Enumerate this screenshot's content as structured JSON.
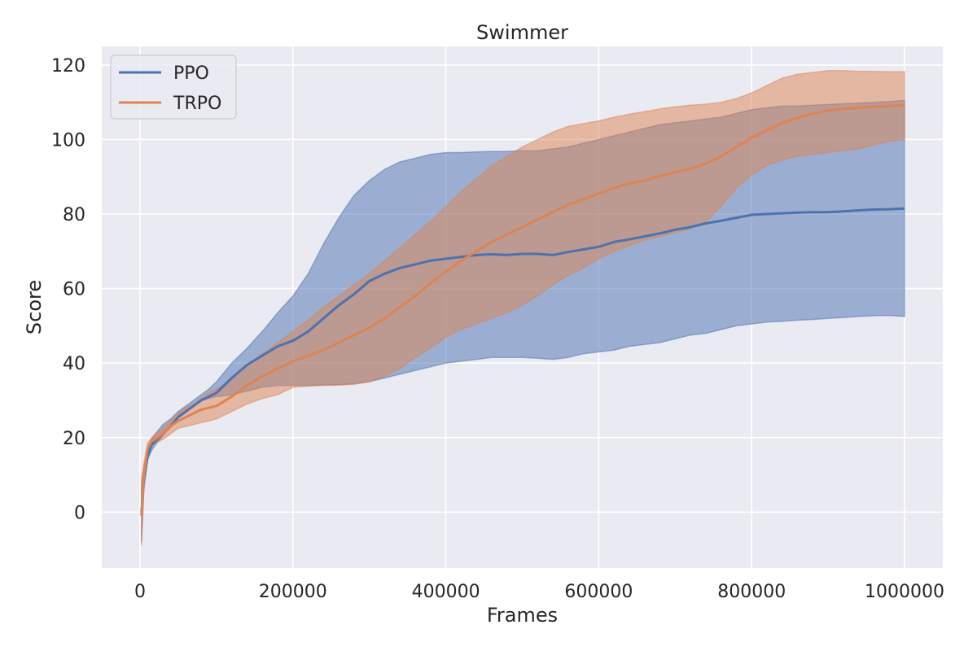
{
  "chart_data": {
    "type": "line",
    "title": "Swimmer",
    "xlabel": "Frames",
    "ylabel": "Score",
    "xlim": [
      -50000,
      1050000
    ],
    "ylim": [
      -15,
      125
    ],
    "xticks": [
      0,
      200000,
      400000,
      600000,
      800000,
      1000000
    ],
    "xtick_labels": [
      "0",
      "200000",
      "400000",
      "600000",
      "800000",
      "1000000"
    ],
    "yticks": [
      0,
      20,
      40,
      60,
      80,
      100,
      120
    ],
    "ytick_labels": [
      "0",
      "20",
      "40",
      "60",
      "80",
      "100",
      "120"
    ],
    "grid": true,
    "legend": "top-left",
    "background": "#eaeaf2",
    "series": [
      {
        "name": "PPO",
        "color": "#4c72b0",
        "x": [
          2000,
          5000,
          10000,
          15000,
          20000,
          30000,
          40000,
          50000,
          60000,
          70000,
          80000,
          90000,
          100000,
          120000,
          140000,
          160000,
          180000,
          200000,
          220000,
          240000,
          260000,
          280000,
          300000,
          320000,
          340000,
          360000,
          380000,
          400000,
          420000,
          440000,
          460000,
          480000,
          500000,
          520000,
          540000,
          560000,
          580000,
          600000,
          620000,
          640000,
          660000,
          680000,
          700000,
          720000,
          740000,
          760000,
          780000,
          800000,
          820000,
          840000,
          860000,
          880000,
          900000,
          920000,
          940000,
          960000,
          980000,
          1000000
        ],
        "mean": [
          0,
          9,
          15,
          18,
          19,
          21,
          23,
          25.5,
          27,
          28.5,
          30,
          31,
          32,
          36,
          39.5,
          42,
          44.5,
          46,
          48.5,
          52,
          55.5,
          58.5,
          62,
          64,
          65.5,
          66.5,
          67.5,
          68,
          68.5,
          69,
          69.2,
          69,
          69.3,
          69.3,
          69,
          69.8,
          70.5,
          71.2,
          72.5,
          73.2,
          74,
          74.8,
          75.8,
          76.5,
          77.5,
          78.2,
          79,
          79.8,
          80,
          80.2,
          80.4,
          80.5,
          80.5,
          80.7,
          81,
          81.2,
          81.3,
          81.5
        ],
        "lower": [
          -8,
          6,
          14,
          16.5,
          18,
          20.5,
          23,
          25.5,
          27,
          28.5,
          30,
          30.5,
          31,
          31.5,
          32.5,
          33.5,
          34,
          34,
          34,
          34.1,
          34.2,
          34.5,
          35,
          36,
          37,
          38,
          39,
          40,
          40.5,
          41,
          41.5,
          41.5,
          41.5,
          41.3,
          41,
          41.5,
          42.5,
          43,
          43.5,
          44.5,
          45,
          45.5,
          46.5,
          47.5,
          48,
          49,
          50,
          50.5,
          51,
          51.2,
          51.5,
          51.7,
          52,
          52.2,
          52.5,
          52.7,
          52.8,
          52.5
        ],
        "upper": [
          7,
          12,
          16.5,
          19.5,
          21,
          23.5,
          25,
          27,
          28.5,
          30,
          31.5,
          33,
          35,
          40,
          44,
          48.5,
          53.5,
          58,
          64,
          72,
          79,
          85,
          89,
          92,
          94,
          95,
          96,
          96.5,
          96.5,
          96.7,
          96.8,
          96.8,
          97,
          97,
          97.5,
          98,
          99,
          100,
          101,
          102,
          103,
          104,
          104.5,
          105,
          105.5,
          106,
          107,
          108,
          108.5,
          109,
          109,
          109.2,
          109.4,
          109.6,
          109.8,
          110,
          110.2,
          110.5
        ]
      },
      {
        "name": "TRPO",
        "color": "#dd8452",
        "x": [
          2000,
          5000,
          10000,
          15000,
          20000,
          30000,
          40000,
          50000,
          60000,
          70000,
          80000,
          90000,
          100000,
          120000,
          140000,
          160000,
          180000,
          200000,
          220000,
          240000,
          260000,
          280000,
          300000,
          320000,
          340000,
          360000,
          380000,
          400000,
          420000,
          440000,
          460000,
          480000,
          500000,
          520000,
          540000,
          560000,
          580000,
          600000,
          620000,
          640000,
          660000,
          680000,
          700000,
          720000,
          740000,
          760000,
          780000,
          800000,
          820000,
          840000,
          860000,
          880000,
          900000,
          920000,
          940000,
          960000,
          980000,
          1000000
        ],
        "mean": [
          -1,
          10,
          17,
          19,
          19.5,
          21,
          23,
          24.5,
          25.5,
          26.5,
          27.5,
          28,
          28.5,
          31,
          34,
          36.5,
          38.5,
          40.5,
          42,
          43.5,
          45.5,
          47.5,
          49.5,
          52,
          55,
          58,
          61.5,
          64.5,
          67.5,
          70,
          72.5,
          74.5,
          76.5,
          78.5,
          80.5,
          82.5,
          84,
          85.5,
          87,
          88.2,
          89,
          90.2,
          91.2,
          92.2,
          93.5,
          95.5,
          98,
          100.5,
          102.5,
          104.5,
          105.8,
          107,
          107.8,
          108.2,
          108.6,
          108.8,
          109,
          109.2
        ],
        "lower": [
          -9,
          8,
          16,
          17.5,
          18.5,
          19.5,
          21,
          22.5,
          23,
          23.5,
          24,
          24.5,
          25,
          27,
          29,
          30.5,
          31.5,
          33.5,
          33.8,
          34,
          34.1,
          34.3,
          35,
          36.5,
          38.5,
          41.5,
          44,
          47,
          49,
          50.5,
          52,
          53.5,
          55.5,
          58,
          61,
          63.5,
          65.5,
          68,
          70,
          71.5,
          73,
          74,
          75,
          76,
          78,
          82,
          87,
          90.5,
          93,
          94.5,
          95.5,
          96,
          96.5,
          97,
          97.5,
          98.5,
          99.5,
          100
        ],
        "upper": [
          9,
          13,
          18.5,
          20,
          21,
          22.5,
          24.5,
          26.5,
          28,
          29,
          30.5,
          32,
          33,
          35.5,
          39.5,
          42.5,
          45.5,
          48.5,
          51.5,
          55,
          58,
          61,
          64,
          67.5,
          71,
          74.5,
          78,
          82,
          86,
          89.5,
          93,
          95.5,
          98,
          100,
          102,
          103.5,
          104.3,
          105,
          106,
          106.8,
          107.5,
          108.2,
          108.8,
          109.2,
          109.5,
          110,
          111,
          112.5,
          114.5,
          116.5,
          117.5,
          118,
          118.5,
          118.5,
          118.3,
          118.3,
          118.2,
          118.2
        ]
      }
    ]
  }
}
